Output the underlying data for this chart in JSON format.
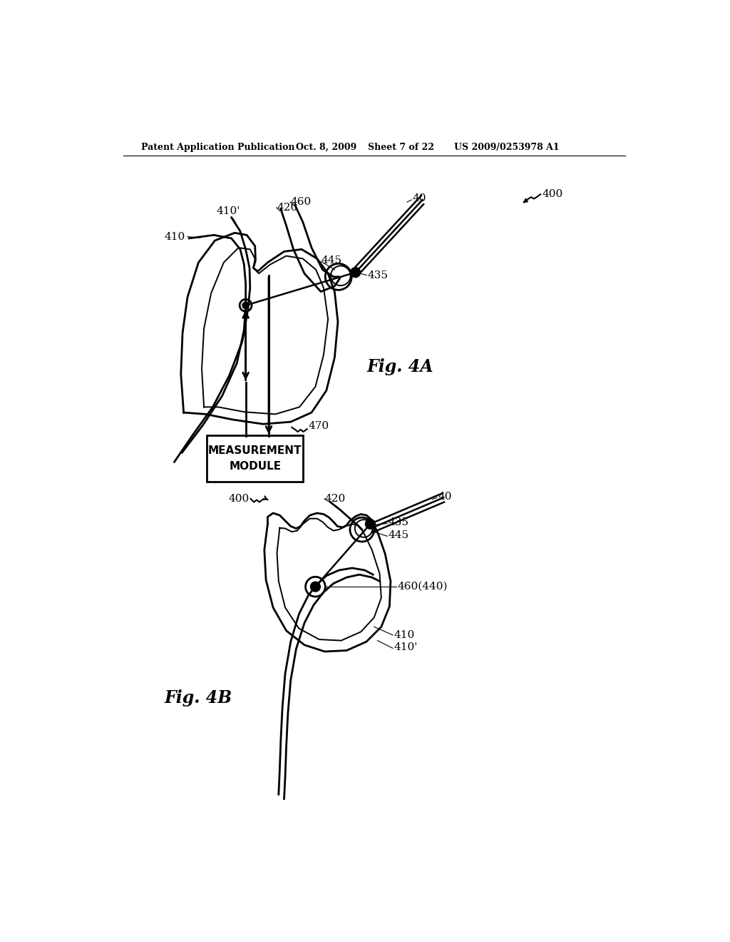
{
  "background_color": "#ffffff",
  "header_text": "Patent Application Publication",
  "header_date": "Oct. 8, 2009",
  "header_sheet": "Sheet 7 of 22",
  "header_patent": "US 2009/0253978 A1",
  "fig4a_label": "Fig. 4A",
  "fig4b_label": "Fig. 4B",
  "measurement_module_text": "MEASUREMENT\nMODULE"
}
